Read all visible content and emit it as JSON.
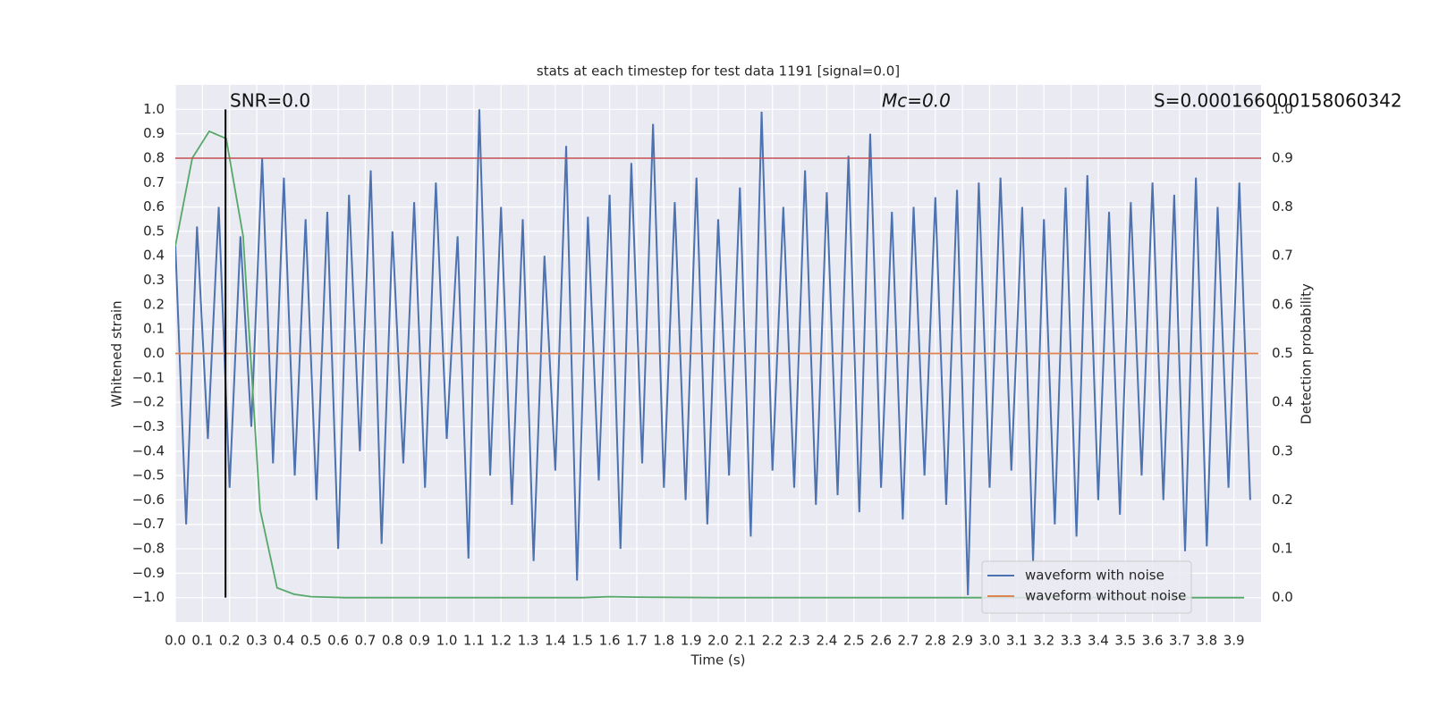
{
  "chart_data": {
    "type": "line",
    "title": "stats at each timestep for test data 1191 [signal=0.0]",
    "xlabel": "Time (s)",
    "ylabel": "Whitened strain",
    "y2label": "Detection probability",
    "annotations": [
      "SNR=0.0",
      "Mc=0.0",
      "S=0.000166000158060342"
    ],
    "xlim": [
      0.0,
      4.0
    ],
    "ylim": [
      -1.1,
      1.1
    ],
    "y2lim": [
      -0.05,
      1.05
    ],
    "xticks": [
      {
        "value": 0.0,
        "label": "0.0"
      },
      0.1,
      0.2,
      0.3,
      0.4,
      0.5,
      0.6,
      0.7,
      0.8,
      0.9,
      {
        "value": 1.0,
        "label": "1.0"
      },
      1.1,
      1.2,
      1.3,
      1.4,
      1.5,
      1.6,
      1.7,
      1.8,
      1.9,
      {
        "value": 2.0,
        "label": "2.0"
      },
      2.1,
      2.2,
      2.3,
      2.4,
      2.5,
      2.6,
      2.7,
      2.8,
      2.9,
      {
        "value": 3.0,
        "label": "3.0"
      },
      3.1,
      3.2,
      3.3,
      3.4,
      3.5,
      3.6,
      3.7,
      3.8,
      3.9
    ],
    "yticks": [
      {
        "value": -1.0,
        "label": "−1.0"
      },
      {
        "value": -0.9,
        "label": "−0.9"
      },
      {
        "value": -0.8,
        "label": "−0.8"
      },
      {
        "value": -0.7,
        "label": "−0.7"
      },
      {
        "value": -0.6,
        "label": "−0.6"
      },
      {
        "value": -0.5,
        "label": "−0.5"
      },
      {
        "value": -0.4,
        "label": "−0.4"
      },
      {
        "value": -0.3,
        "label": "−0.3"
      },
      {
        "value": -0.2,
        "label": "−0.2"
      },
      {
        "value": -0.1,
        "label": "−0.1"
      },
      {
        "value": 0.0,
        "label": "0.0"
      },
      0.1,
      0.2,
      0.3,
      0.4,
      0.5,
      0.6,
      0.7,
      0.8,
      0.9,
      {
        "value": 1.0,
        "label": "1.0"
      }
    ],
    "y2ticks": [
      {
        "value": 0.0,
        "label": "0.0"
      },
      0.1,
      0.2,
      0.3,
      0.4,
      0.5,
      0.6,
      0.7,
      0.8,
      0.9,
      {
        "value": 1.0,
        "label": "1.0"
      }
    ],
    "grid": true,
    "legend": "lower right",
    "vlines": [
      {
        "x": 0.185,
        "ymin": -1.0,
        "ymax": 1.0,
        "color": "#000000"
      }
    ],
    "hlines": [
      {
        "y": 0.9,
        "axis": "y2",
        "color": "#c44e52"
      }
    ],
    "series": [
      {
        "name": "waveform with noise",
        "color": "#4c72b0",
        "x": [
          0.0,
          0.04,
          0.08,
          0.12,
          0.16,
          0.2,
          0.24,
          0.28,
          0.32,
          0.36,
          0.4,
          0.44,
          0.48,
          0.52,
          0.56,
          0.6,
          0.64,
          0.68,
          0.72,
          0.76,
          0.8,
          0.84,
          0.88,
          0.92,
          0.96,
          1.0,
          1.04,
          1.08,
          1.12,
          1.16,
          1.2,
          1.24,
          1.28,
          1.32,
          1.36,
          1.4,
          1.44,
          1.48,
          1.52,
          1.56,
          1.6,
          1.64,
          1.68,
          1.72,
          1.76,
          1.8,
          1.84,
          1.88,
          1.92,
          1.96,
          2.0,
          2.04,
          2.08,
          2.12,
          2.16,
          2.2,
          2.24,
          2.28,
          2.32,
          2.36,
          2.4,
          2.44,
          2.48,
          2.52,
          2.56,
          2.6,
          2.64,
          2.68,
          2.72,
          2.76,
          2.8,
          2.84,
          2.88,
          2.92,
          2.96,
          3.0,
          3.04,
          3.08,
          3.12,
          3.16,
          3.2,
          3.24,
          3.28,
          3.32,
          3.36,
          3.4,
          3.44,
          3.48,
          3.52,
          3.56,
          3.6,
          3.64,
          3.68,
          3.72,
          3.76,
          3.8,
          3.84,
          3.88,
          3.92,
          3.96
        ],
        "values": [
          0.45,
          -0.7,
          0.52,
          -0.35,
          0.6,
          -0.55,
          0.48,
          -0.3,
          0.8,
          -0.45,
          0.72,
          -0.5,
          0.55,
          -0.6,
          0.58,
          -0.8,
          0.65,
          -0.4,
          0.75,
          -0.78,
          0.5,
          -0.45,
          0.62,
          -0.55,
          0.7,
          -0.35,
          0.48,
          -0.84,
          1.0,
          -0.5,
          0.6,
          -0.62,
          0.55,
          -0.85,
          0.4,
          -0.48,
          0.85,
          -0.93,
          0.56,
          -0.52,
          0.65,
          -0.8,
          0.78,
          -0.45,
          0.94,
          -0.55,
          0.62,
          -0.6,
          0.72,
          -0.7,
          0.55,
          -0.5,
          0.68,
          -0.75,
          0.99,
          -0.48,
          0.6,
          -0.55,
          0.75,
          -0.62,
          0.66,
          -0.58,
          0.81,
          -0.65,
          0.9,
          -0.55,
          0.58,
          -0.68,
          0.6,
          -0.5,
          0.64,
          -0.62,
          0.67,
          -0.99,
          0.7,
          -0.55,
          0.72,
          -0.48,
          0.6,
          -0.85,
          0.55,
          -0.7,
          0.68,
          -0.75,
          0.73,
          -0.6,
          0.58,
          -0.66,
          0.62,
          -0.5,
          0.7,
          -0.6,
          0.65,
          -0.81,
          0.72,
          -0.79,
          0.6,
          -0.55,
          0.7,
          -0.6
        ]
      },
      {
        "name": "waveform without noise",
        "color": "#dd8452",
        "x": [
          0.0,
          3.99
        ],
        "values": [
          0.0,
          0.0
        ]
      },
      {
        "color": "#55a868",
        "axis": "y2",
        "x": [
          0.0,
          0.0625,
          0.125,
          0.1875,
          0.25,
          0.3125,
          0.375,
          0.4375,
          0.5,
          0.5625,
          0.625,
          1.0,
          1.5,
          1.6,
          1.7,
          2.0,
          3.0,
          3.9375
        ],
        "values": [
          0.72,
          0.9,
          0.955,
          0.94,
          0.74,
          0.18,
          0.02,
          0.007,
          0.002,
          0.001,
          0.0,
          0.0,
          0.0,
          0.002,
          0.001,
          0.0,
          0.0,
          0.0
        ]
      }
    ]
  }
}
